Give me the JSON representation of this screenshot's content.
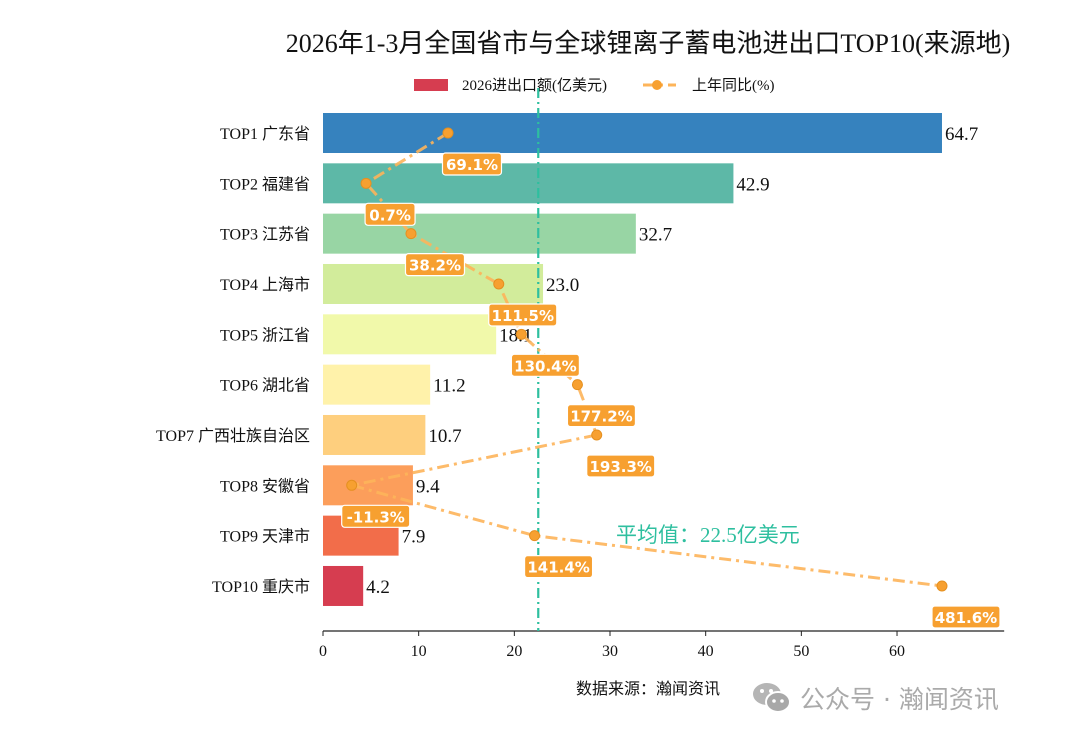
{
  "chart_data": {
    "type": "bar",
    "orientation": "horizontal",
    "title": "2026年1-3月全国省市与全球锂离子蓄电池进出口TOP10(来源地)",
    "categories": [
      "TOP1 广东省",
      "TOP2 福建省",
      "TOP3 江苏省",
      "TOP4 上海市",
      "TOP5 浙江省",
      "TOP6 湖北省",
      "TOP7 广西壮族自治区",
      "TOP8 安徽省",
      "TOP9 天津市",
      "TOP10 重庆市"
    ],
    "series": [
      {
        "name": "2026进出口额(亿美元)",
        "type": "bar",
        "values": [
          64.7,
          42.9,
          32.7,
          23.0,
          18.1,
          11.2,
          10.7,
          9.4,
          7.9,
          4.2
        ],
        "value_labels": [
          "64.7",
          "42.9",
          "32.7",
          "23.0",
          "18.1",
          "11.2",
          "10.7",
          "9.4",
          "7.9",
          "4.2"
        ],
        "colors": [
          "#3682be",
          "#5db8a7",
          "#98d5a4",
          "#d2ec9b",
          "#f1f9aa",
          "#fff2aa",
          "#fecf7e",
          "#fc9e5b",
          "#f26d4a",
          "#d63d50"
        ]
      },
      {
        "name": "上年同比(%)",
        "type": "line",
        "values": [
          69.1,
          0.7,
          38.2,
          111.5,
          130.4,
          177.2,
          193.3,
          -11.3,
          141.4,
          481.6
        ],
        "value_labels": [
          "69.1%",
          "0.7%",
          "38.2%",
          "111.5%",
          "130.4%",
          "177.2%",
          "193.3%",
          "-11.3%",
          "141.4%",
          "481.6%"
        ],
        "color": "#fdb45a",
        "label_color": "#f7a030"
      }
    ],
    "x_ticks": [
      "0",
      "10",
      "20",
      "30",
      "40",
      "50",
      "60"
    ],
    "xlim": [
      0,
      71.2
    ],
    "average": {
      "value": 22.5,
      "label": "平均值：22.5亿美元",
      "color": "#2ebf9f"
    },
    "legend": "top-center",
    "grid": false
  },
  "source": "数据来源：瀚闻资讯",
  "watermark": {
    "text": "公众号 · 瀚闻资讯",
    "icon": "wechat-icon"
  }
}
